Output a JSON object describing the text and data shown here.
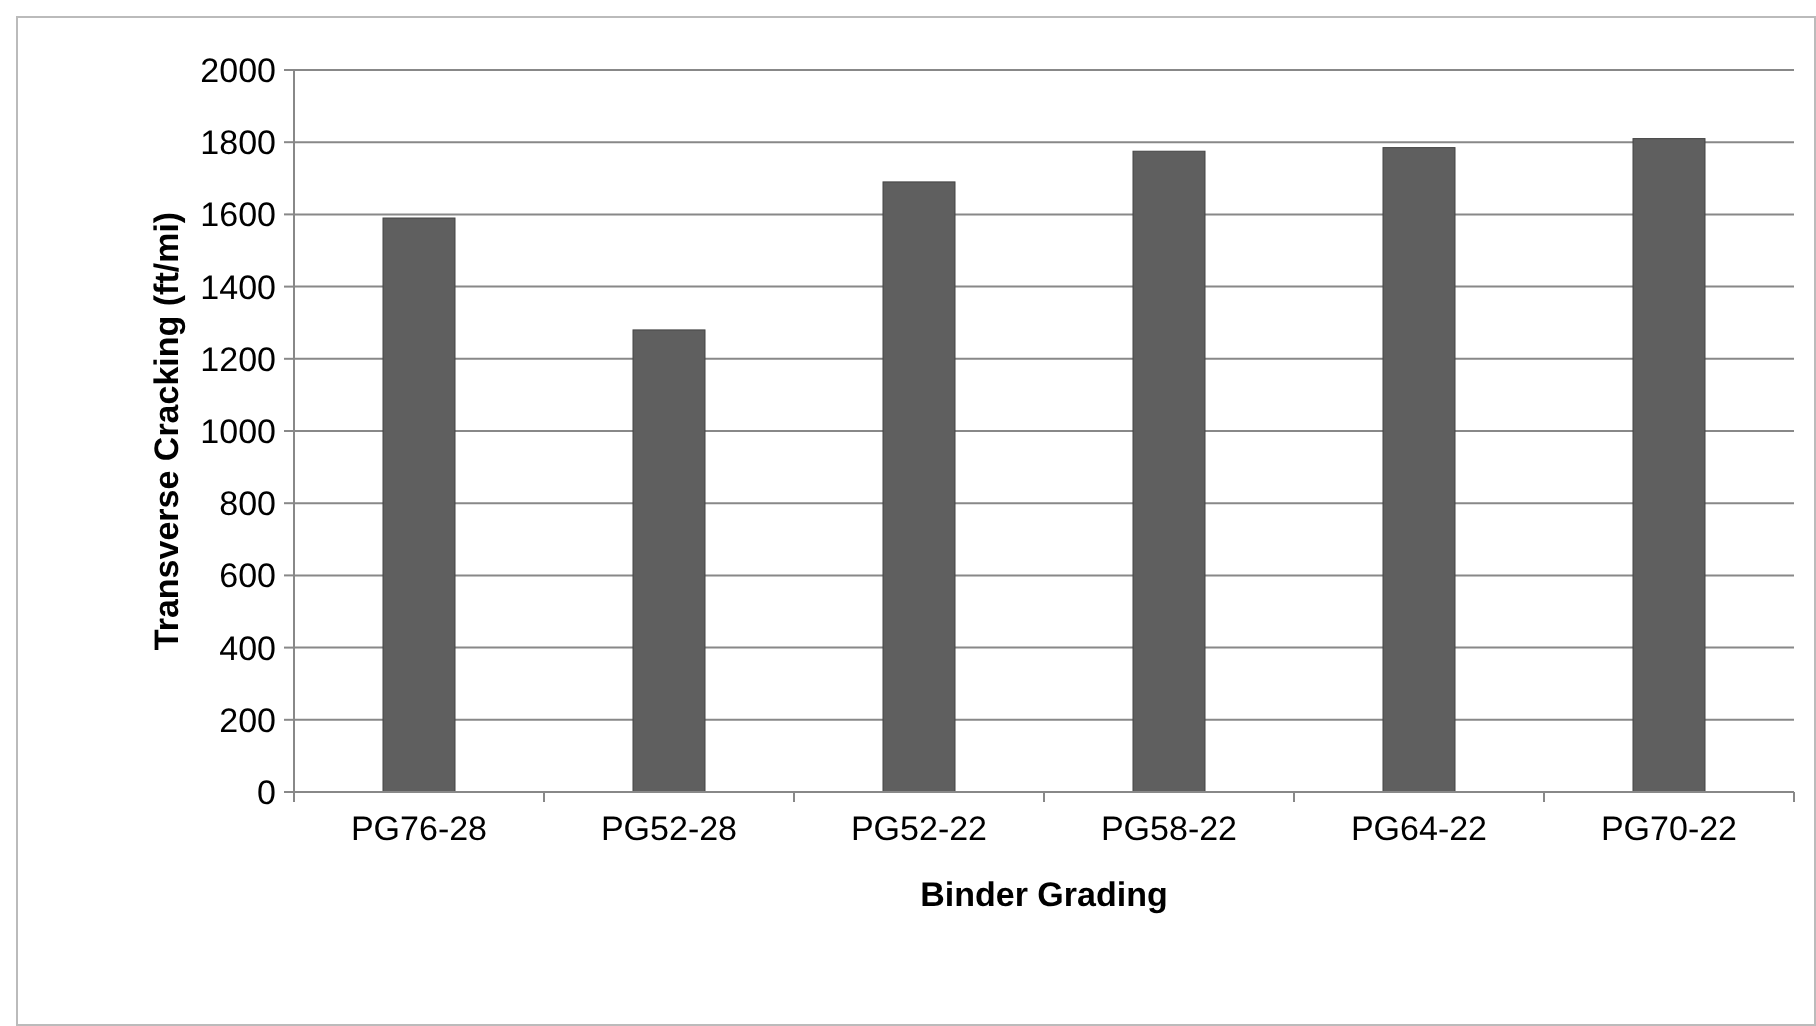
{
  "chart_data": {
    "type": "bar",
    "xlabel": "Binder Grading",
    "ylabel": "Transverse Cracking (ft/mi)",
    "categories": [
      "PG76-28",
      "PG52-28",
      "PG52-22",
      "PG58-22",
      "PG64-22",
      "PG70-22"
    ],
    "values": [
      1590,
      1280,
      1690,
      1775,
      1785,
      1810
    ],
    "color": "#5f5f5f",
    "ylim": [
      0,
      2000
    ],
    "yticks": [
      0,
      200,
      400,
      600,
      800,
      1000,
      1200,
      1400,
      1600,
      1800,
      2000
    ],
    "grid": "y"
  }
}
